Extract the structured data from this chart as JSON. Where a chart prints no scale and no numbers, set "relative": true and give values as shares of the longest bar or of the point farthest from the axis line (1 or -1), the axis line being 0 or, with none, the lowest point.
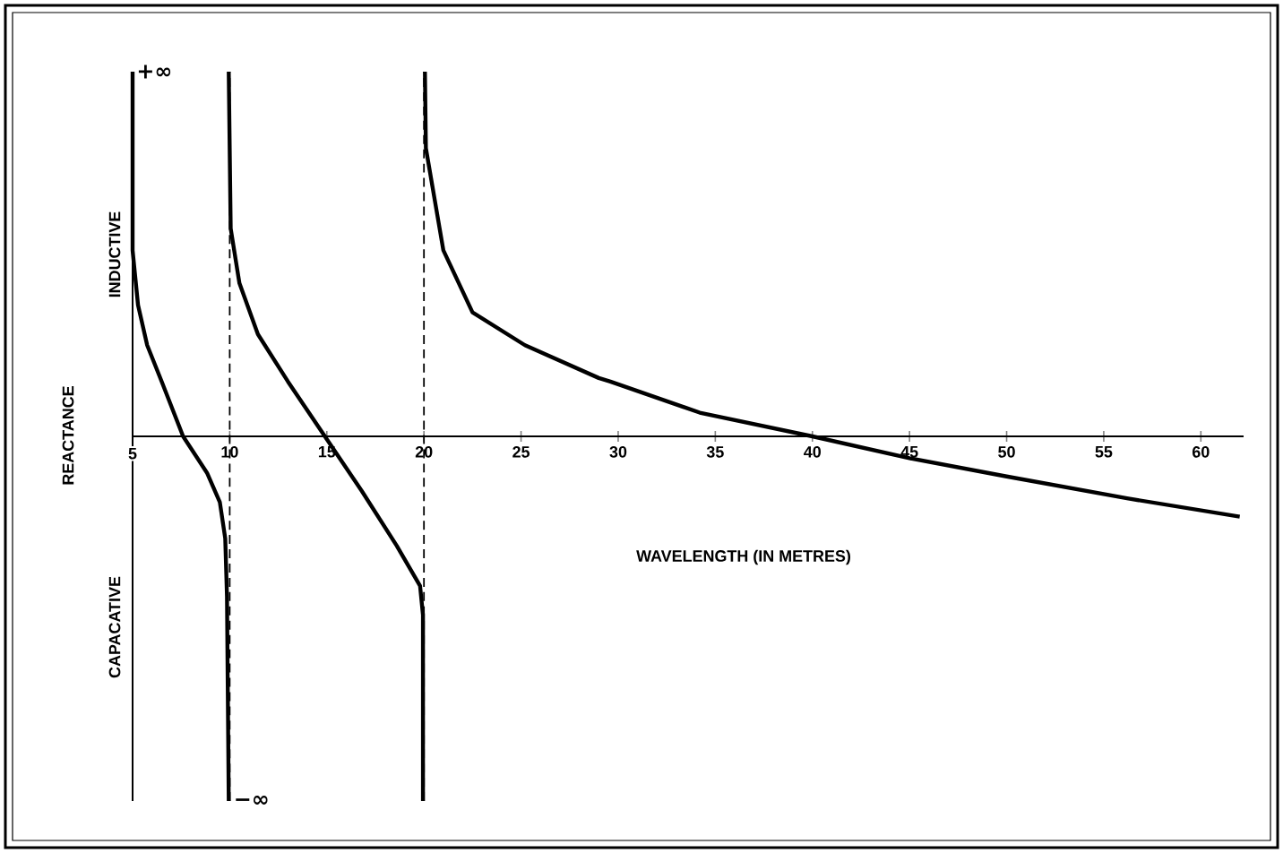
{
  "chart_data": {
    "type": "line",
    "relative": true,
    "xlabel": "WAVELENGTH  (IN METRES)",
    "ylabel": "REACTANCE",
    "xlim": [
      5,
      62.2
    ],
    "xticks": [
      5,
      10,
      15,
      20,
      25,
      30,
      35,
      40,
      45,
      50,
      55,
      60
    ],
    "series": [
      {
        "color": "#000000",
        "x": [
          5,
          5,
          5.28,
          5.75,
          6.5,
          7.6,
          8.83,
          9.49,
          9.77,
          9.86,
          9.95
        ],
        "values": [
          1,
          0.51,
          0.36,
          0.25,
          0.15,
          0,
          -0.1,
          -0.18,
          -0.28,
          -0.44,
          -1
        ]
      },
      {
        "color": "#000000",
        "x": [
          9.95,
          10.05,
          10.5,
          11.45,
          13.0,
          14.9,
          16.8,
          18.6,
          19.8,
          19.95,
          19.95
        ],
        "values": [
          1,
          0.57,
          0.42,
          0.28,
          0.15,
          0,
          -0.15,
          -0.3,
          -0.41,
          -0.49,
          -1
        ]
      },
      {
        "color": "#000000",
        "x": [
          20.05,
          20.1,
          21,
          22.5,
          25.2,
          29,
          29.6,
          34.2,
          40,
          45,
          50,
          56.2,
          62
        ],
        "values": [
          1,
          0.79,
          0.51,
          0.34,
          0.25,
          0.16,
          0.15,
          0.065,
          0,
          -0.06,
          -0.11,
          -0.17,
          -0.22
        ]
      }
    ],
    "ref_lines": [
      {
        "axis": "x",
        "value": 10,
        "color": "#000000",
        "line_style": "dashed"
      },
      {
        "axis": "x",
        "value": 20,
        "color": "#000000",
        "line_style": "dashed"
      }
    ],
    "annotations": [
      {
        "text": "+∞",
        "x": 5,
        "y": 1
      },
      {
        "text": "−∞",
        "x": 10,
        "y": -1
      },
      "INDUCTIVE",
      "CAPACATIVE"
    ]
  }
}
